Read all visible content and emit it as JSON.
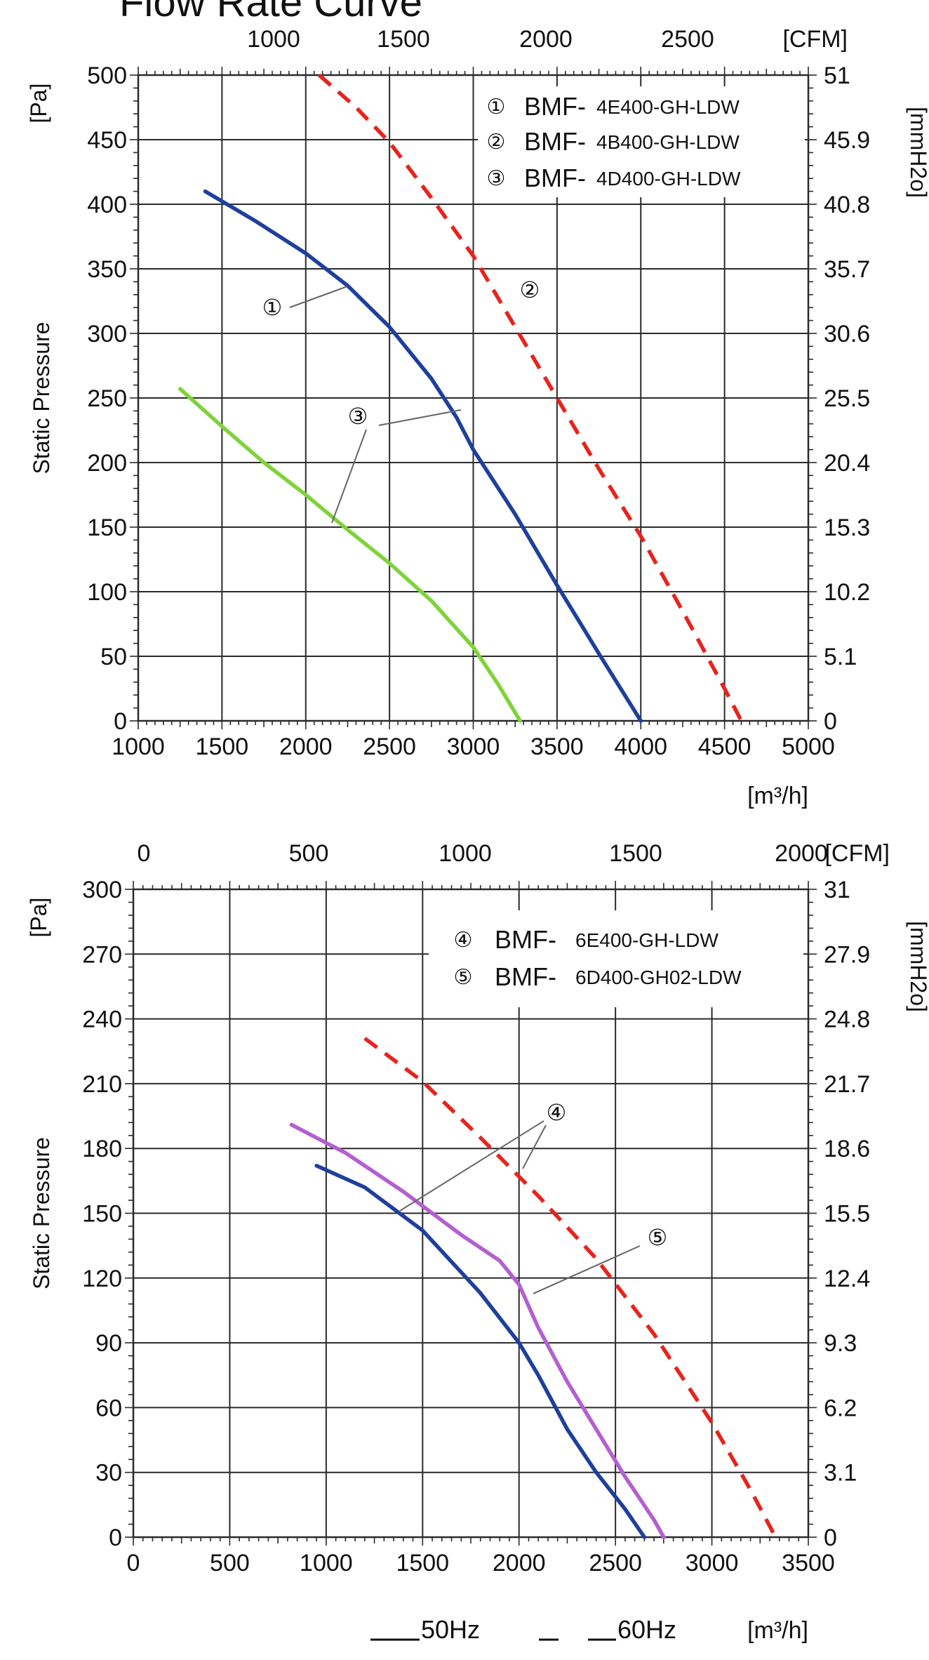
{
  "title": "Flow Rate Curve",
  "footer": {
    "legend_50hz": "50Hz",
    "legend_60hz": "60Hz",
    "unit": "[m³/h]"
  },
  "colors": {
    "blue": "#1f3f9c",
    "red": "#e8231d",
    "green": "#7fd33a",
    "purple": "#b45fd0",
    "grid": "#2a2a2a",
    "callout": "#666666"
  },
  "chart_data": [
    {
      "type": "line",
      "x_range": [
        1000,
        5000
      ],
      "x_ticks": [
        1000,
        1500,
        2000,
        2500,
        3000,
        3500,
        4000,
        4500,
        5000
      ],
      "x_unit": "[m³/h]",
      "y_range": [
        0,
        500
      ],
      "y_ticks": [
        0,
        50,
        100,
        150,
        200,
        250,
        300,
        350,
        400,
        450,
        500
      ],
      "ylabel": "Static Pressure",
      "y_unit": "[Pa]",
      "top_ticks": [
        "1000",
        "1500",
        "2000",
        "2500"
      ],
      "top_unit": "[CFM]",
      "right_ticks": [
        "0",
        "5.1",
        "10.2",
        "15.3",
        "20.4",
        "25.5",
        "30.6",
        "35.7",
        "40.8",
        "45.9",
        "51"
      ],
      "right_unit": "[mmH2o]",
      "grid": true,
      "legend_position": "top-right",
      "legend": [
        {
          "marker": "①",
          "prefix": "BMF-",
          "model": "4E400-GH-LDW"
        },
        {
          "marker": "②",
          "prefix": "BMF-",
          "model": "4B400-GH-LDW"
        },
        {
          "marker": "③",
          "prefix": "BMF-",
          "model": "4D400-GH-LDW"
        }
      ],
      "series": [
        {
          "marker": "①",
          "frequency": "50Hz",
          "style": "solid",
          "color": "#1f3f9c",
          "x": [
            1400,
            1700,
            2000,
            2250,
            2500,
            2750,
            2900,
            3000,
            3250,
            3500,
            3750,
            4000
          ],
          "y": [
            410,
            387,
            362,
            337,
            305,
            265,
            235,
            210,
            160,
            105,
            52,
            0
          ]
        },
        {
          "marker": "②",
          "frequency": "60Hz",
          "style": "dashed",
          "color": "#e8231d",
          "x": [
            2080,
            2300,
            2500,
            2750,
            3000,
            3250,
            3500,
            3750,
            4000,
            4250,
            4500,
            4600
          ],
          "y": [
            500,
            475,
            448,
            405,
            360,
            305,
            250,
            195,
            143,
            85,
            25,
            0
          ]
        },
        {
          "marker": "③",
          "frequency": "50Hz",
          "style": "solid",
          "color": "#7fd33a",
          "x": [
            1250,
            1500,
            1750,
            2000,
            2250,
            2500,
            2750,
            3000,
            3150,
            3280
          ],
          "y": [
            257,
            228,
            200,
            175,
            148,
            122,
            93,
            57,
            28,
            0
          ]
        }
      ]
    },
    {
      "type": "line",
      "x_range": [
        0,
        3500
      ],
      "x_ticks": [
        0,
        500,
        1000,
        1500,
        2000,
        2500,
        3000,
        3500
      ],
      "x_unit": "[m³/h]",
      "y_range": [
        0,
        300
      ],
      "y_ticks": [
        0,
        30,
        60,
        90,
        120,
        150,
        180,
        210,
        240,
        270,
        300
      ],
      "ylabel": "Static Pressure",
      "y_unit": "[Pa]",
      "top_ticks": [
        "0",
        "500",
        "1000",
        "1500",
        "2000"
      ],
      "top_unit": "[CFM]",
      "right_ticks": [
        "0",
        "3.1",
        "6.2",
        "9.3",
        "12.4",
        "15.5",
        "18.6",
        "21.7",
        "24.8",
        "27.9",
        "31"
      ],
      "right_unit": "[mmH2o]",
      "grid": true,
      "legend_position": "top-right",
      "legend": [
        {
          "marker": "④",
          "prefix": "BMF-",
          "model": "6E400-GH-LDW"
        },
        {
          "marker": "⑤",
          "prefix": "BMF-",
          "model": "6D400-GH02-LDW"
        }
      ],
      "series": [
        {
          "marker": "④",
          "frequency": "50Hz",
          "style": "solid",
          "color": "#1f3f9c",
          "x": [
            950,
            1200,
            1500,
            1800,
            2000,
            2100,
            2250,
            2400,
            2550,
            2650
          ],
          "y": [
            172,
            162,
            142,
            113,
            90,
            75,
            50,
            30,
            13,
            0
          ]
        },
        {
          "marker": "④",
          "frequency": "50Hz",
          "style": "solid",
          "color": "#b45fd0",
          "x": [
            820,
            1100,
            1400,
            1700,
            1900,
            2000,
            2100,
            2250,
            2400,
            2550,
            2700,
            2750
          ],
          "y": [
            191,
            178,
            160,
            140,
            128,
            117,
            97,
            72,
            50,
            28,
            8,
            0
          ]
        },
        {
          "marker": "⑤",
          "frequency": "60Hz",
          "style": "dashed",
          "color": "#e8231d",
          "x": [
            1200,
            1500,
            1800,
            2100,
            2400,
            2700,
            3000,
            3200,
            3330
          ],
          "y": [
            231,
            211,
            185,
            158,
            129,
            94,
            53,
            22,
            0
          ]
        }
      ]
    }
  ]
}
